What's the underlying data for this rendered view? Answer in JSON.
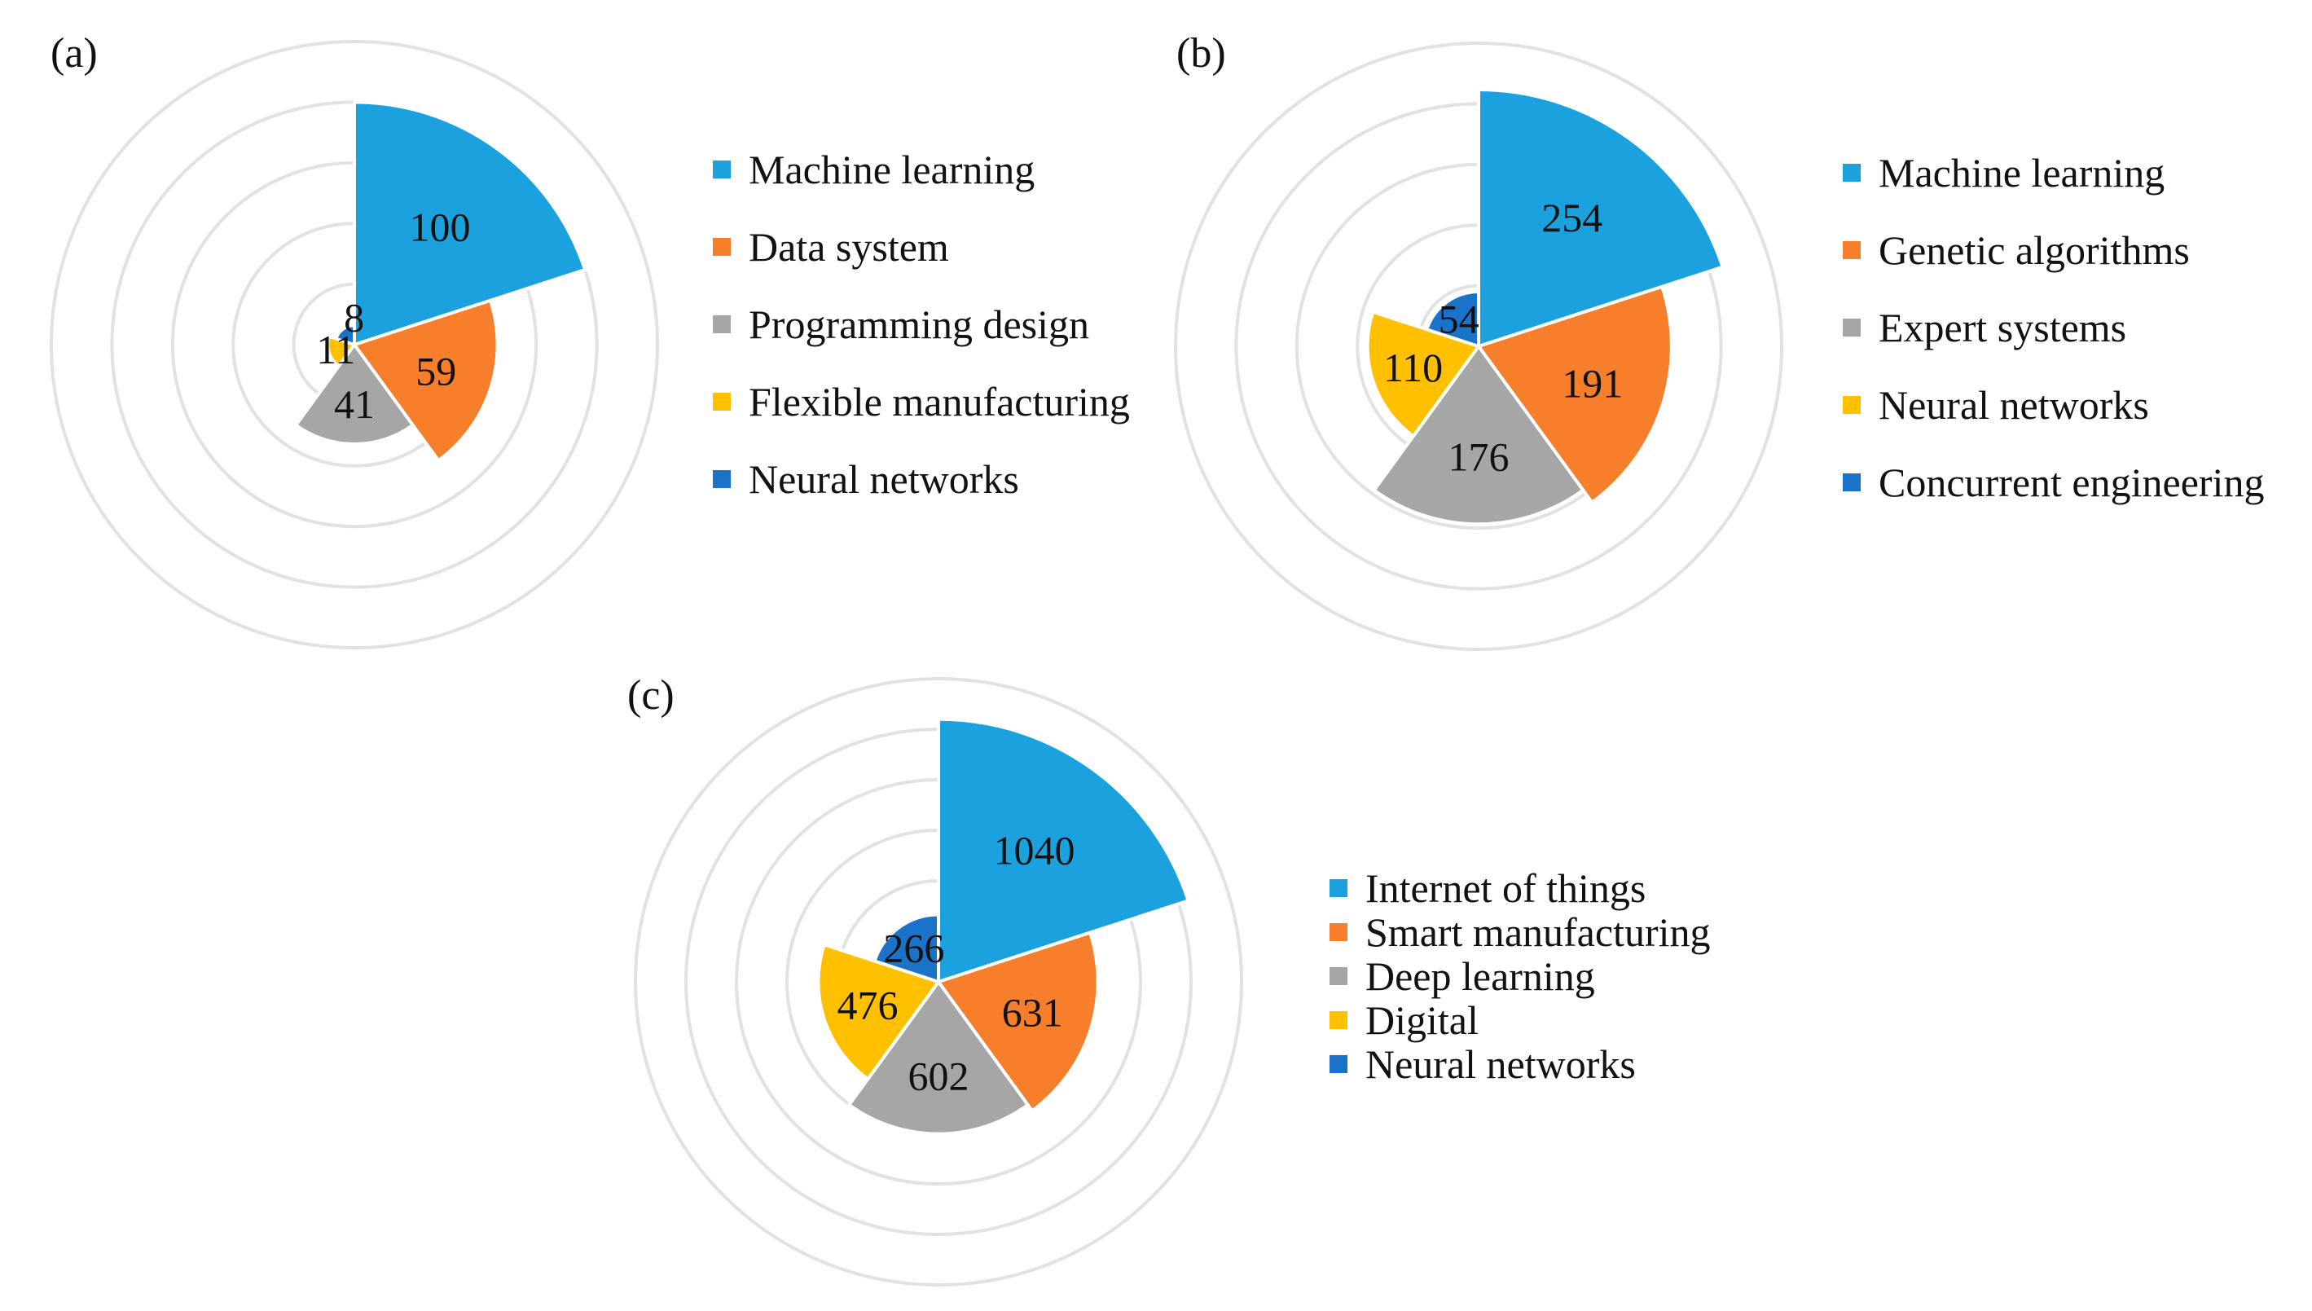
{
  "chart_data": [
    {
      "type": "pie",
      "variant": "rose",
      "panel_label": "(a)",
      "categories": [
        "Machine learning",
        "Data system",
        "Programming design",
        "Flexible manufacturing",
        "Neural networks"
      ],
      "values": [
        100,
        59,
        41,
        11,
        8
      ],
      "value_labels": [
        "100",
        "59",
        "41",
        "11",
        "8"
      ],
      "colors": [
        "#1ba1de",
        "#f77e2a",
        "#a6a6a6",
        "#ffc000",
        "#1a72c9"
      ],
      "rmax": 125,
      "rings": 5,
      "legend_position": "right"
    },
    {
      "type": "pie",
      "variant": "rose",
      "panel_label": "(b)",
      "categories": [
        "Machine learning",
        "Genetic algorithms",
        "Expert systems",
        "Neural networks",
        "Concurrent engineering"
      ],
      "values": [
        254,
        191,
        176,
        110,
        54
      ],
      "value_labels": [
        "254",
        "191",
        "176",
        "110",
        "54"
      ],
      "colors": [
        "#1ba1de",
        "#f77e2a",
        "#a6a6a6",
        "#ffc000",
        "#1a72c9"
      ],
      "rmax": 300,
      "rings": 5,
      "legend_position": "right"
    },
    {
      "type": "pie",
      "variant": "rose",
      "panel_label": "(c)",
      "categories": [
        "Internet of things",
        "Smart manufacturing",
        "Deep learning",
        "Digital",
        "Neural networks"
      ],
      "values": [
        1040,
        631,
        602,
        476,
        266
      ],
      "value_labels": [
        "1040",
        "631",
        "602",
        "476",
        "266"
      ],
      "colors": [
        "#1ba1de",
        "#f77e2a",
        "#a6a6a6",
        "#ffc000",
        "#1a72c9"
      ],
      "rmax": 1200,
      "rings": 6,
      "legend_position": "right"
    }
  ]
}
